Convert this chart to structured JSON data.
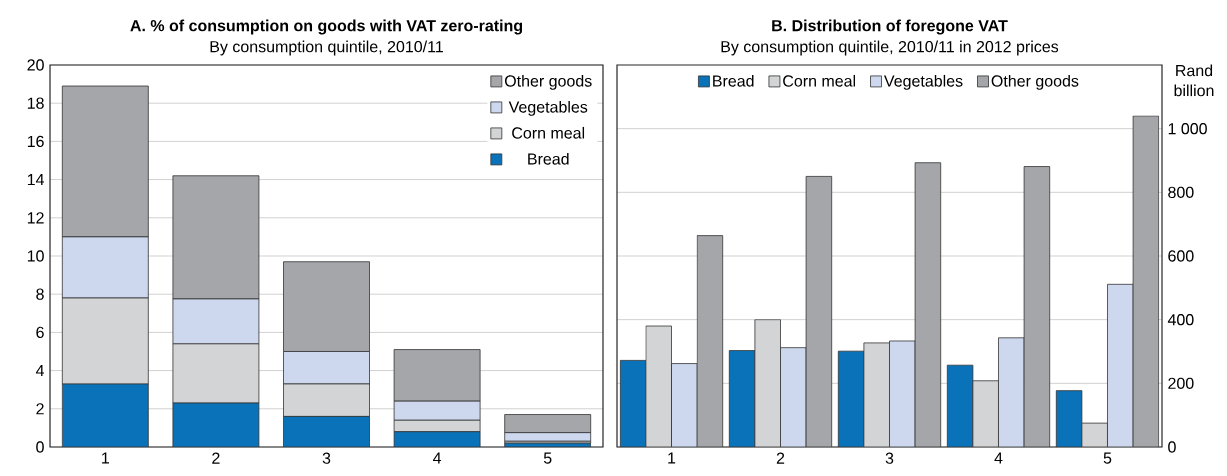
{
  "chart_data": [
    {
      "type": "bar",
      "title": "A. % of consumption on goods with VAT zero-rating",
      "subtitle": "By consumption quintile, 2010/11",
      "categories": [
        "1",
        "2",
        "3",
        "4",
        "5"
      ],
      "stacked": true,
      "series": [
        {
          "name": "Bread",
          "color": "#0a72b8",
          "values": [
            3.3,
            2.3,
            1.6,
            0.8,
            0.2
          ]
        },
        {
          "name": "Corn meal",
          "color": "#d3d4d5",
          "values": [
            4.5,
            3.1,
            1.7,
            0.6,
            0.1
          ]
        },
        {
          "name": "Vegetables",
          "color": "#cdd8ef",
          "values": [
            3.2,
            2.35,
            1.7,
            1.0,
            0.45
          ]
        },
        {
          "name": "Other goods",
          "color": "#a5a6aa",
          "values": [
            7.9,
            6.45,
            4.7,
            2.7,
            0.95
          ]
        }
      ],
      "ylim": [
        0,
        20
      ],
      "yticks": [
        0,
        2,
        4,
        6,
        8,
        10,
        12,
        14,
        16,
        18,
        20
      ],
      "grid": "y",
      "legend": "top right"
    },
    {
      "type": "bar",
      "title": "B. Distribution of foregone VAT",
      "subtitle": "By consumption quintile, 2010/11 in 2012 prices",
      "ylabel": "Rand billion",
      "categories": [
        "1",
        "2",
        "3",
        "4",
        "5"
      ],
      "series": [
        {
          "name": "Bread",
          "color": "#0a72b8",
          "values": [
            272,
            303,
            301,
            257,
            177
          ]
        },
        {
          "name": "Corn meal",
          "color": "#d3d4d5",
          "values": [
            380,
            400,
            327,
            208,
            75
          ]
        },
        {
          "name": "Vegetables",
          "color": "#cdd8ef",
          "values": [
            262,
            312,
            333,
            343,
            511
          ]
        },
        {
          "name": "Other goods",
          "color": "#a5a6aa",
          "values": [
            664,
            850,
            893,
            881,
            1040
          ]
        }
      ],
      "ylim": [
        0,
        1200
      ],
      "yticks": [
        0,
        200,
        400,
        600,
        800,
        {
          "value": 1000,
          "label": "1 000"
        }
      ],
      "grid": "y",
      "legend": "top"
    }
  ]
}
